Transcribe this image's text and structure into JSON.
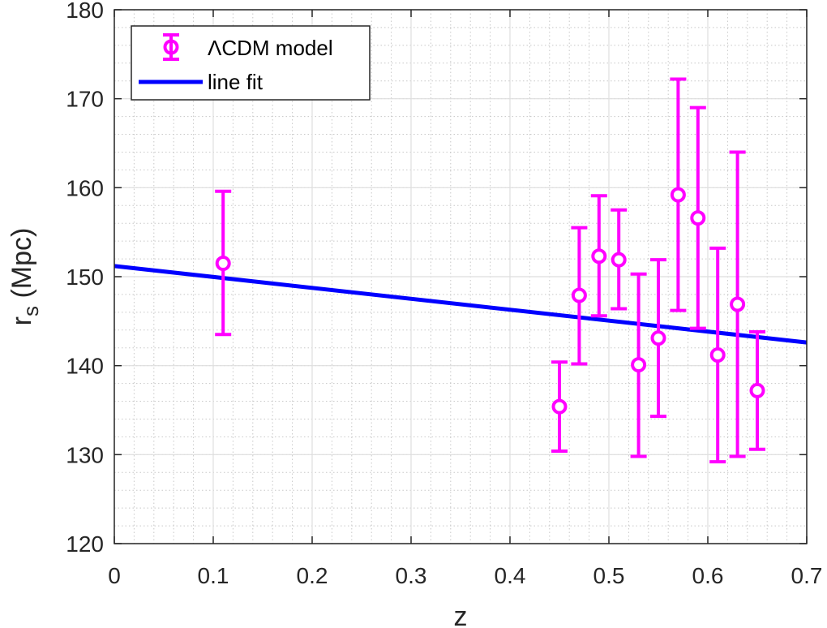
{
  "chart_data": {
    "type": "scatter",
    "xlabel": "z",
    "ylabel": "r",
    "ylabel_subscript": "s",
    "ylabel_suffix": " (Mpc)",
    "xlim": [
      0,
      0.7
    ],
    "ylim": [
      120,
      180
    ],
    "xticks": [
      0,
      0.1,
      0.2,
      0.3,
      0.4,
      0.5,
      0.6,
      0.7
    ],
    "xtick_labels": [
      "0",
      "0.1",
      "0.2",
      "0.3",
      "0.4",
      "0.5",
      "0.6",
      "0.7"
    ],
    "yticks": [
      120,
      130,
      140,
      150,
      160,
      170,
      180
    ],
    "ytick_labels": [
      "120",
      "130",
      "140",
      "150",
      "160",
      "170",
      "180"
    ],
    "grid": true,
    "minor_grid": true,
    "legend_position": "top-left",
    "series": [
      {
        "name": "ΛCDM model",
        "kind": "errorbar",
        "color": "#FF00FF",
        "points": [
          {
            "x": 0.11,
            "y": 151.5,
            "lower": 143.5,
            "upper": 159.6
          },
          {
            "x": 0.45,
            "y": 135.4,
            "lower": 130.4,
            "upper": 140.4
          },
          {
            "x": 0.47,
            "y": 147.9,
            "lower": 140.2,
            "upper": 155.5
          },
          {
            "x": 0.49,
            "y": 152.3,
            "lower": 145.6,
            "upper": 159.1
          },
          {
            "x": 0.51,
            "y": 151.9,
            "lower": 146.4,
            "upper": 157.5
          },
          {
            "x": 0.53,
            "y": 140.1,
            "lower": 129.8,
            "upper": 150.3
          },
          {
            "x": 0.55,
            "y": 143.1,
            "lower": 134.3,
            "upper": 151.9
          },
          {
            "x": 0.57,
            "y": 159.2,
            "lower": 146.2,
            "upper": 172.2
          },
          {
            "x": 0.59,
            "y": 156.6,
            "lower": 144.2,
            "upper": 169.0
          },
          {
            "x": 0.61,
            "y": 141.2,
            "lower": 129.2,
            "upper": 153.2
          },
          {
            "x": 0.63,
            "y": 146.9,
            "lower": 129.8,
            "upper": 164.0
          },
          {
            "x": 0.65,
            "y": 137.2,
            "lower": 130.6,
            "upper": 143.8
          }
        ]
      },
      {
        "name": "line fit",
        "kind": "line",
        "color": "#0000FF",
        "x": [
          0,
          0.7
        ],
        "y": [
          151.2,
          142.6
        ]
      }
    ]
  }
}
